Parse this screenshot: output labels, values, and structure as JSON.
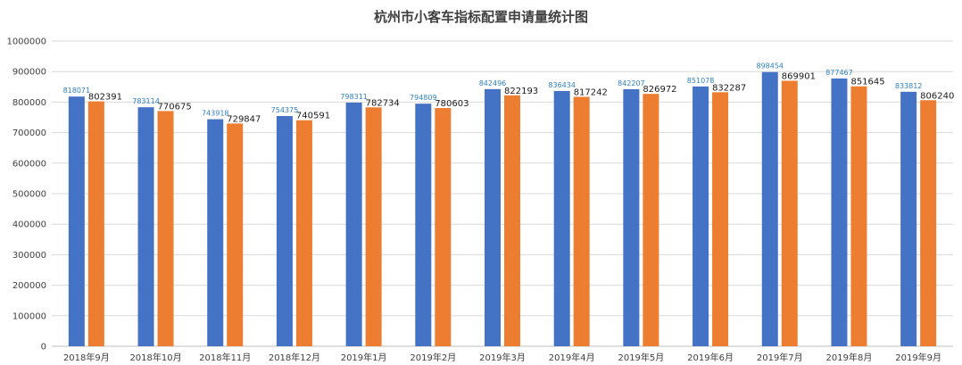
{
  "chart_data": {
    "type": "bar",
    "title": "杭州市小客车指标配置申请量统计图",
    "xlabel": "",
    "ylabel": "",
    "ylim": [
      0,
      1000000
    ],
    "y_ticks": [
      "0",
      "100000",
      "200000",
      "300000",
      "400000",
      "500000",
      "600000",
      "700000",
      "800000",
      "900000",
      "1000000"
    ],
    "grid": true,
    "legend": "none",
    "categories": [
      "2018年9月",
      "2018年10月",
      "2018年11月",
      "2018年12月",
      "2019年1月",
      "2019年2月",
      "2019年3月",
      "2019年4月",
      "2019年5月",
      "2019年6月",
      "2019年7月",
      "2019年8月",
      "2019年9月"
    ],
    "series": [
      {
        "color": "#4472c4",
        "values": [
          818071,
          783114,
          743918,
          754375,
          798311,
          794809,
          842496,
          836434,
          842207,
          851078,
          898454,
          877467,
          833812
        ]
      },
      {
        "color": "#ed7d31",
        "values": [
          802391,
          770675,
          729847,
          740591,
          782734,
          780603,
          822193,
          817242,
          826972,
          832287,
          869901,
          851645,
          806240
        ]
      }
    ]
  }
}
